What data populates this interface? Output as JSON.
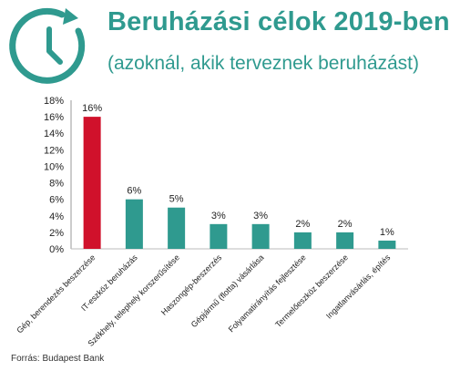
{
  "header": {
    "title": "Beruházási célok 2019-ben",
    "subtitle": "(azoknál, akik terveznek beruházást)",
    "icon": "clock-icon"
  },
  "source": "Forrás: Budapest Bank",
  "colors": {
    "accent": "#2f9a8f",
    "highlight": "#d0112b"
  },
  "chart_data": {
    "type": "bar",
    "categories": [
      "Gép, berendezés beszerzése",
      "IT-eszköz beruházás",
      "Székhely, telephely korszerűsítése",
      "Haszongép-beszerzés",
      "Gépjármű (flotta) vásárlása",
      "Folyamatirányítás fejlesztése",
      "Termelőeszköz beszerzése",
      "Ingatlanvásárlás, építés"
    ],
    "values": [
      16,
      6,
      5,
      3,
      3,
      2,
      2,
      1
    ],
    "value_labels": [
      "16%",
      "6%",
      "5%",
      "3%",
      "3%",
      "2%",
      "2%",
      "1%"
    ],
    "yticks": [
      "0%",
      "2%",
      "4%",
      "6%",
      "8%",
      "10%",
      "12%",
      "14%",
      "16%",
      "18%"
    ],
    "ylim": [
      0,
      18
    ],
    "grid": false,
    "title": "Beruházási célok 2019-ben",
    "subtitle": "(azoknál, akik terveznek beruházást)"
  }
}
